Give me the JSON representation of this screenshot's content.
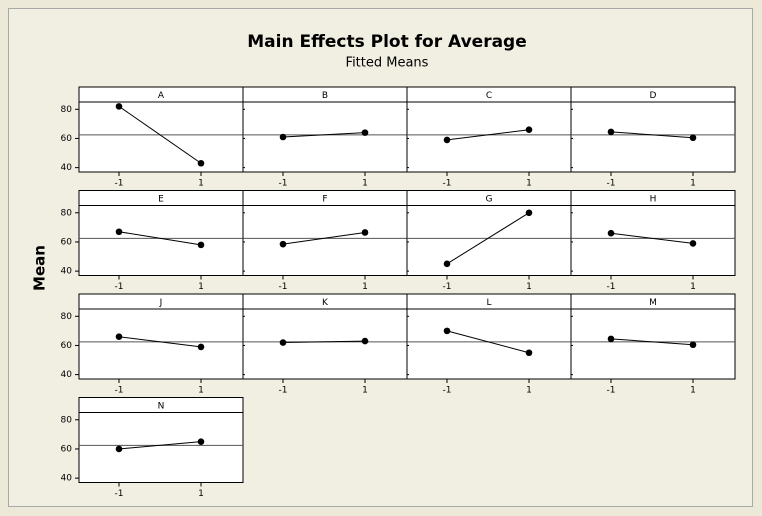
{
  "figure": {
    "title": "Main Effects Plot for Average",
    "subtitle": "Fitted Means",
    "ylabel": "Mean"
  },
  "chart_data": [
    {
      "type": "line",
      "title": "A",
      "categories": [
        "-1",
        "1"
      ],
      "values": [
        82,
        43
      ],
      "color": "#000000",
      "reference_line": 62.5,
      "ylim": [
        37,
        85
      ],
      "yticks": [
        40,
        60,
        80
      ]
    },
    {
      "type": "line",
      "title": "B",
      "categories": [
        "-1",
        "1"
      ],
      "values": [
        61,
        64
      ],
      "color": "#000000",
      "reference_line": 62.5,
      "ylim": [
        37,
        85
      ],
      "yticks": [
        40,
        60,
        80
      ]
    },
    {
      "type": "line",
      "title": "C",
      "categories": [
        "-1",
        "1"
      ],
      "values": [
        59,
        66
      ],
      "color": "#000000",
      "reference_line": 62.5,
      "ylim": [
        37,
        85
      ],
      "yticks": [
        40,
        60,
        80
      ]
    },
    {
      "type": "line",
      "title": "D",
      "categories": [
        "-1",
        "1"
      ],
      "values": [
        64.5,
        60.5
      ],
      "color": "#000000",
      "reference_line": 62.5,
      "ylim": [
        37,
        85
      ],
      "yticks": [
        40,
        60,
        80
      ]
    },
    {
      "type": "line",
      "title": "E",
      "categories": [
        "-1",
        "1"
      ],
      "values": [
        67,
        58
      ],
      "color": "#000000",
      "reference_line": 62.5,
      "ylim": [
        37,
        85
      ],
      "yticks": [
        40,
        60,
        80
      ]
    },
    {
      "type": "line",
      "title": "F",
      "categories": [
        "-1",
        "1"
      ],
      "values": [
        58.5,
        66.5
      ],
      "color": "#000000",
      "reference_line": 62.5,
      "ylim": [
        37,
        85
      ],
      "yticks": [
        40,
        60,
        80
      ]
    },
    {
      "type": "line",
      "title": "G",
      "categories": [
        "-1",
        "1"
      ],
      "values": [
        45,
        80
      ],
      "color": "#000000",
      "reference_line": 62.5,
      "ylim": [
        37,
        85
      ],
      "yticks": [
        40,
        60,
        80
      ]
    },
    {
      "type": "line",
      "title": "H",
      "categories": [
        "-1",
        "1"
      ],
      "values": [
        66,
        59
      ],
      "color": "#000000",
      "reference_line": 62.5,
      "ylim": [
        37,
        85
      ],
      "yticks": [
        40,
        60,
        80
      ]
    },
    {
      "type": "line",
      "title": "J",
      "categories": [
        "-1",
        "1"
      ],
      "values": [
        66,
        59
      ],
      "color": "#000000",
      "reference_line": 62.5,
      "ylim": [
        37,
        85
      ],
      "yticks": [
        40,
        60,
        80
      ]
    },
    {
      "type": "line",
      "title": "K",
      "categories": [
        "-1",
        "1"
      ],
      "values": [
        62,
        63
      ],
      "color": "#000000",
      "reference_line": 62.5,
      "ylim": [
        37,
        85
      ],
      "yticks": [
        40,
        60,
        80
      ]
    },
    {
      "type": "line",
      "title": "L",
      "categories": [
        "-1",
        "1"
      ],
      "values": [
        70,
        55
      ],
      "color": "#000000",
      "reference_line": 62.5,
      "ylim": [
        37,
        85
      ],
      "yticks": [
        40,
        60,
        80
      ]
    },
    {
      "type": "line",
      "title": "M",
      "categories": [
        "-1",
        "1"
      ],
      "values": [
        64.5,
        60.5
      ],
      "color": "#000000",
      "reference_line": 62.5,
      "ylim": [
        37,
        85
      ],
      "yticks": [
        40,
        60,
        80
      ]
    },
    {
      "type": "line",
      "title": "N",
      "categories": [
        "-1",
        "1"
      ],
      "values": [
        60,
        65
      ],
      "color": "#000000",
      "reference_line": 62.5,
      "ylim": [
        37,
        85
      ],
      "yticks": [
        40,
        60,
        80
      ]
    }
  ]
}
